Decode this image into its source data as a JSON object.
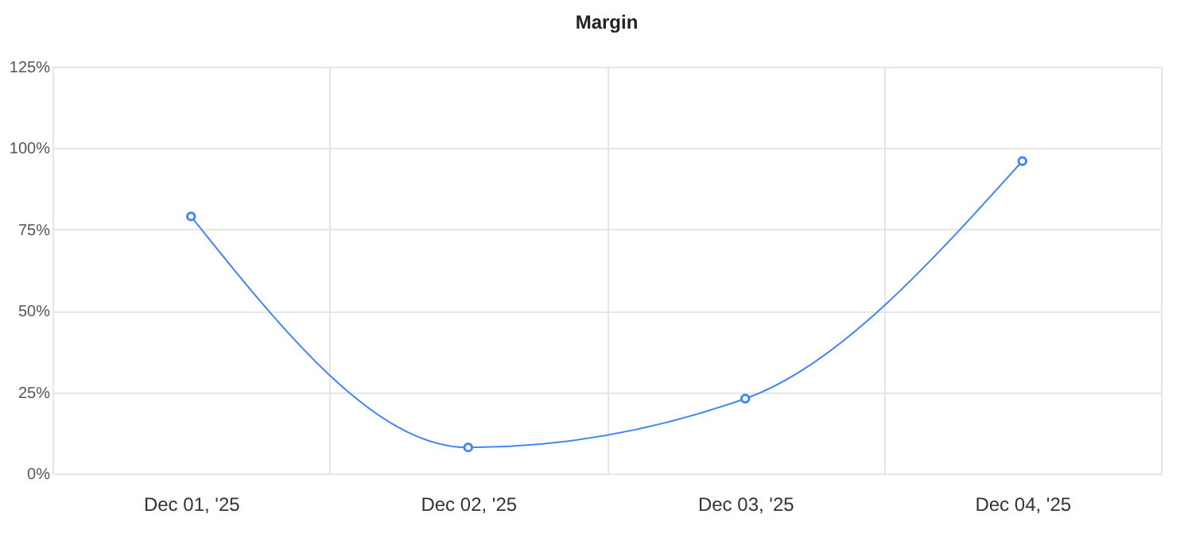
{
  "chart_data": {
    "type": "line",
    "title": "Margin",
    "categories": [
      "Dec 01, '25",
      "Dec 02, '25",
      "Dec 03, '25",
      "Dec 04, '25"
    ],
    "series": [
      {
        "color": "#4285f4",
        "values": [
          79,
          8,
          23,
          96
        ]
      }
    ],
    "ylim": [
      0,
      125
    ],
    "yticks": [
      {
        "value": 0,
        "label": "0%"
      },
      {
        "value": 25,
        "label": "25%"
      },
      {
        "value": 50,
        "label": "50%"
      },
      {
        "value": 75,
        "label": "75%"
      },
      {
        "value": 100,
        "label": "100%"
      },
      {
        "value": 125,
        "label": "125%"
      }
    ],
    "grid": true,
    "marker": "circle"
  }
}
